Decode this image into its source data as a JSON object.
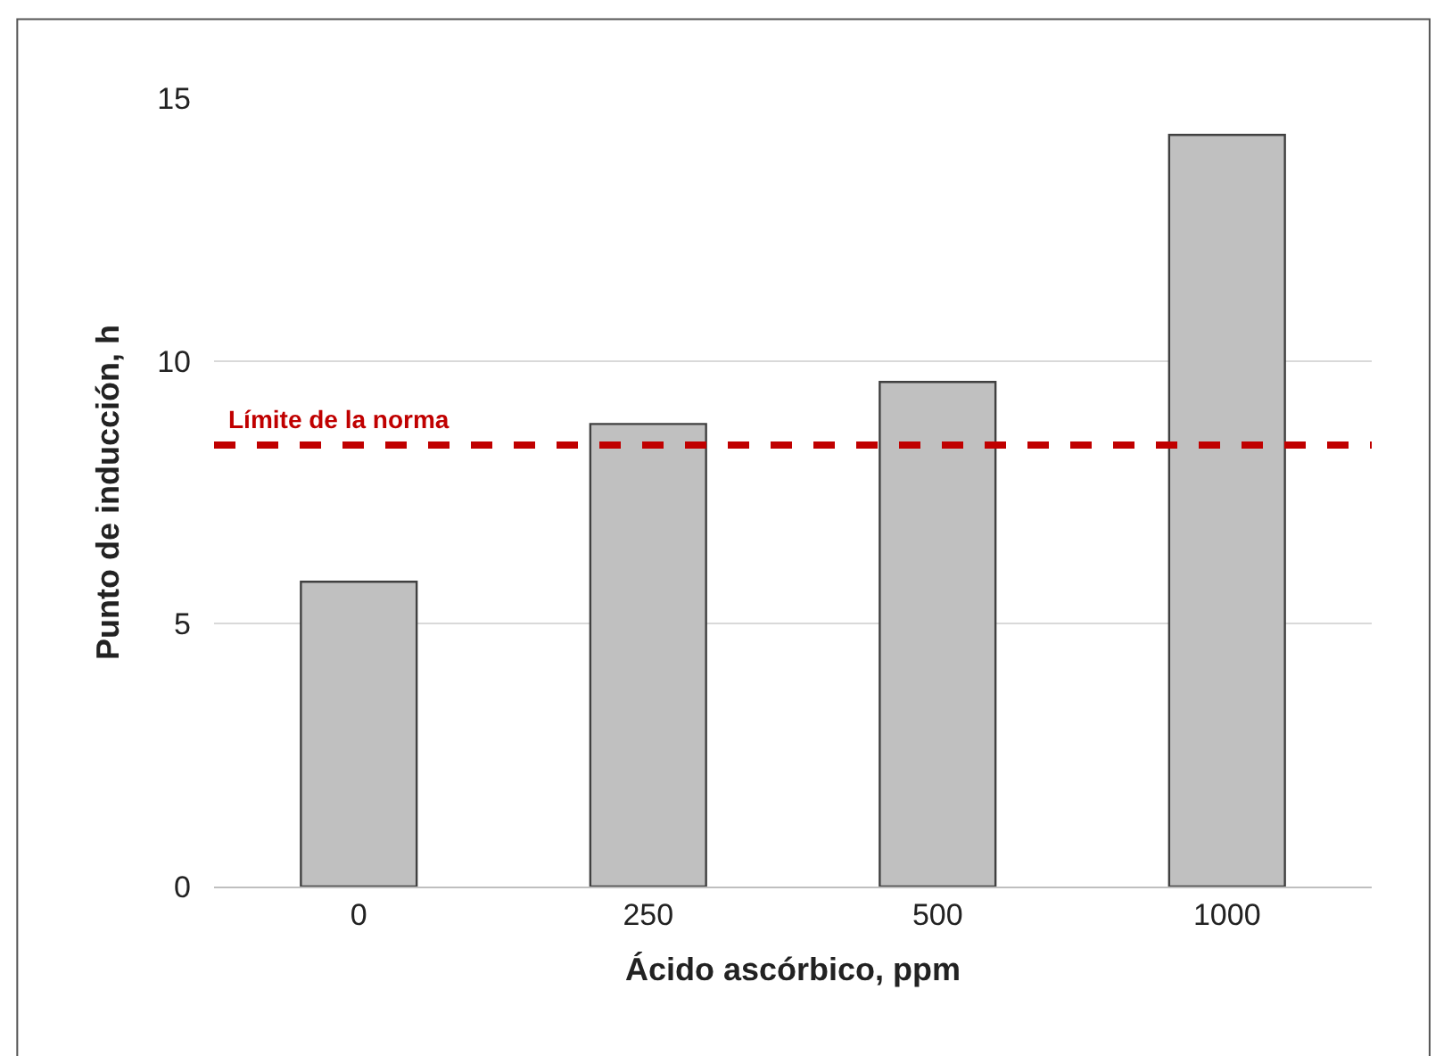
{
  "chart_data": {
    "type": "bar",
    "xlabel": "Ácido ascórbico, ppm",
    "ylabel": "Punto de inducción, h",
    "categories": [
      "0",
      "250",
      "500",
      "1000"
    ],
    "series": [
      {
        "color": "#c0c0c0",
        "values": [
          5.8,
          8.8,
          9.6,
          14.3
        ]
      }
    ],
    "ylim": [
      0,
      15
    ],
    "yticks": [
      0,
      5,
      10,
      15
    ],
    "grid": "y",
    "ref_lines": [
      {
        "axis": "y",
        "value": 8.4,
        "label": "Límite de la norma",
        "color": "#c00000",
        "line_style": "dashed"
      }
    ]
  }
}
